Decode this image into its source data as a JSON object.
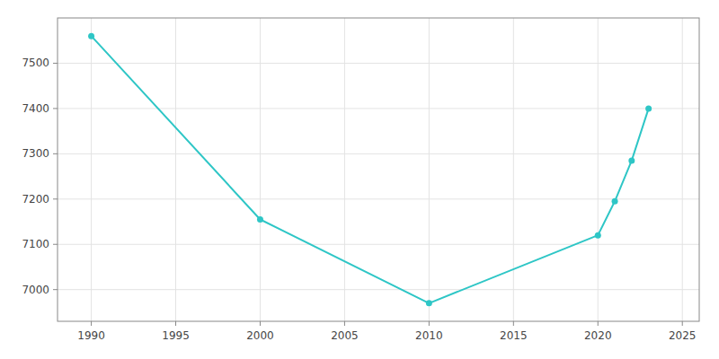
{
  "chart_data": {
    "type": "line",
    "x": [
      1990,
      2000,
      2010,
      2020,
      2021,
      2022,
      2023
    ],
    "values": [
      7560,
      7155,
      6970,
      7120,
      7195,
      7285,
      7400
    ],
    "color": "#2ec6c6",
    "marker": "circle",
    "xlim": [
      1988,
      2026
    ],
    "ylim": [
      6930,
      7600
    ],
    "xticks": [
      1990,
      1995,
      2000,
      2005,
      2010,
      2015,
      2020,
      2025
    ],
    "yticks": [
      7000,
      7100,
      7200,
      7300,
      7400,
      7500
    ],
    "grid": true
  }
}
